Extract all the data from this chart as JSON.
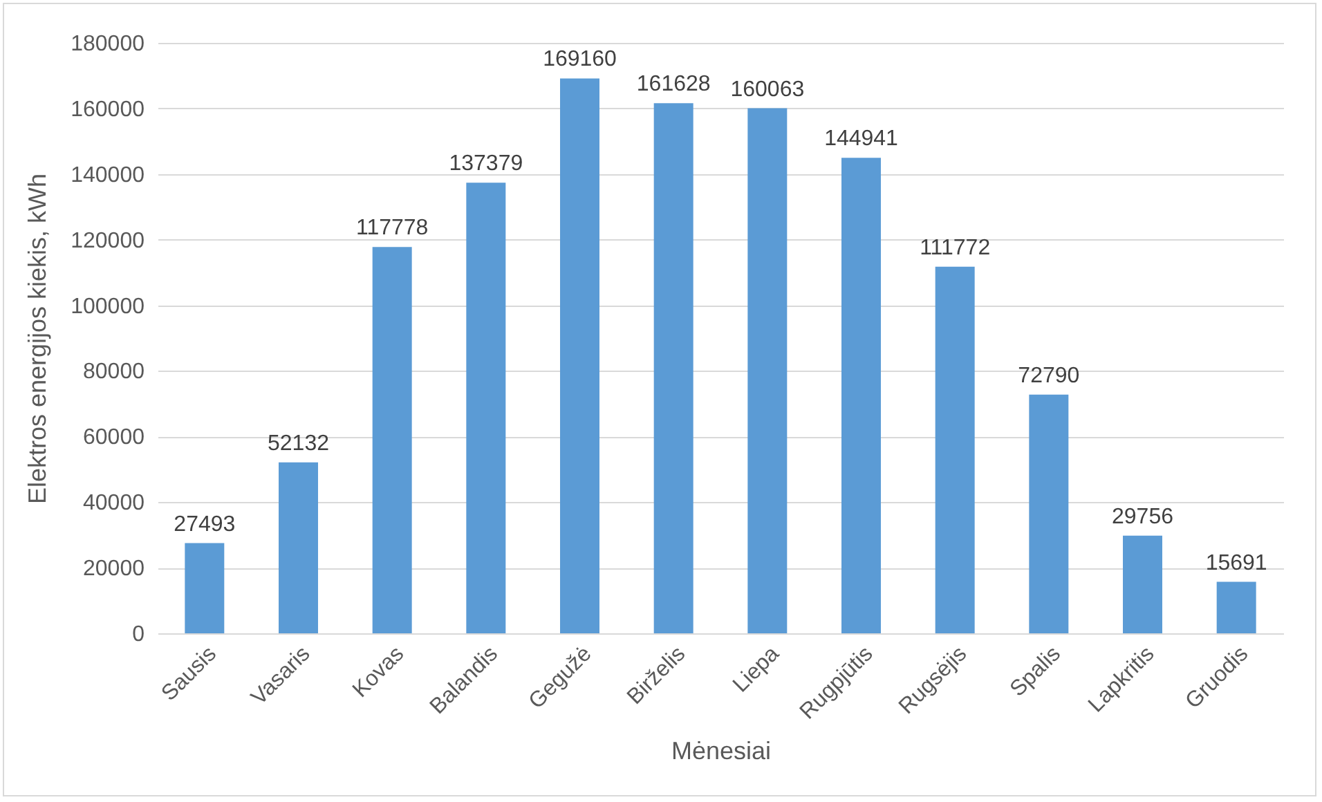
{
  "chart_data": {
    "type": "bar",
    "xlabel": "Mėnesiai",
    "ylabel": "Elektros energijos kiekis, kWh",
    "categories": [
      "Sausis",
      "Vasaris",
      "Kovas",
      "Balandis",
      "Gegužė",
      "Birželis",
      "Liepa",
      "Rugpjūtis",
      "Rugsėjis",
      "Spalis",
      "Lapkritis",
      "Gruodis"
    ],
    "values": [
      27493,
      52132,
      117778,
      137379,
      169160,
      161628,
      160063,
      144941,
      111772,
      72790,
      29756,
      15691
    ],
    "color": "#5b9bd5",
    "ylim": [
      0,
      180000
    ],
    "yticks": [
      0,
      20000,
      40000,
      60000,
      80000,
      100000,
      120000,
      140000,
      160000,
      180000
    ],
    "grid": "y",
    "data_labels": true
  }
}
